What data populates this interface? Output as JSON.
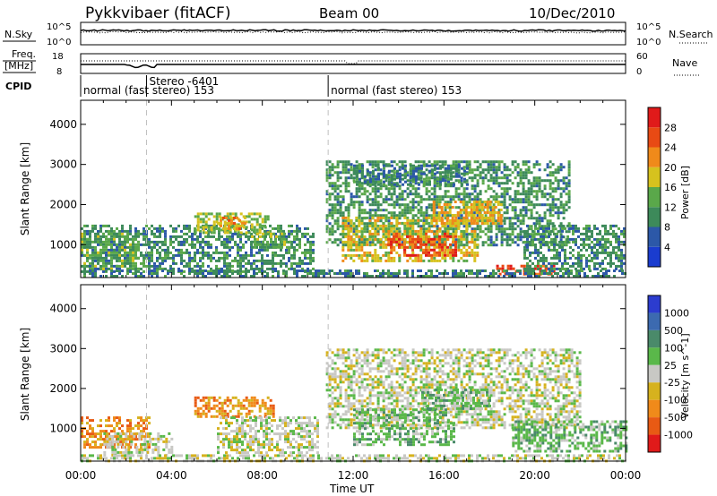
{
  "header": {
    "title": "Pykkvibaer (fitACF)",
    "beam": "Beam 00",
    "date": "10/Dec/2010"
  },
  "colors": {
    "power_scale": [
      "#1a3ccf",
      "#2c58a8",
      "#3d8a5a",
      "#5aa84a",
      "#d6c21e",
      "#f08a1a",
      "#e84a14",
      "#e01a1a"
    ],
    "velocity_scale": [
      "#2c3ccf",
      "#3c6ab0",
      "#4a8a6a",
      "#5ab84a",
      "#c8c8c4",
      "#d6b21e",
      "#f08a1a",
      "#e85a14",
      "#e01a1a"
    ],
    "dashed_line": "#bfbfbf"
  },
  "panels": {
    "nsky": {
      "left_label": "N.Sky",
      "right_label": "N.Search",
      "left_ticks": [
        "10^5",
        "10^0"
      ],
      "right_ticks": [
        "10^5",
        "10^0"
      ]
    },
    "freq": {
      "left_label_1": "Freq.",
      "left_label_2": "[MHz]",
      "right_label": "Nave",
      "left_ticks": [
        "18",
        "8"
      ],
      "right_ticks": [
        "60",
        "0"
      ]
    },
    "cpid": {
      "label": "CPID",
      "segments": [
        {
          "text": "normal (fast stereo) 153",
          "start_hour": 0
        },
        {
          "text": "Stereo -6401",
          "start_hour": 2.9
        },
        {
          "text": "normal (fast stereo) 153",
          "start_hour": 10.9
        }
      ]
    }
  },
  "chart_data": [
    {
      "type": "heatmap",
      "name": "Power",
      "ylabel": "Slant Range [km]",
      "ylim": [
        180,
        4600
      ],
      "y_ticks": [
        1000,
        2000,
        3000,
        4000
      ],
      "xlim": [
        0,
        24
      ],
      "colorbar_label": "Power [dB]",
      "colorbar_ticks": [
        "28",
        "24",
        "20",
        "16",
        "12",
        "8",
        "4"
      ],
      "colorbar_range": [
        0,
        32
      ],
      "dashed_hours": [
        2.9,
        10.9
      ],
      "echo_regions": [
        {
          "t0": 0.0,
          "t1": 10.3,
          "r0": 300,
          "r1": 1500,
          "level": 10
        },
        {
          "t0": 0.0,
          "t1": 2.5,
          "r0": 400,
          "r1": 1300,
          "level": 13
        },
        {
          "t0": 5.0,
          "t1": 8.2,
          "r0": 1300,
          "r1": 1800,
          "level": 16
        },
        {
          "t0": 6.0,
          "t1": 7.2,
          "r0": 1400,
          "r1": 1700,
          "level": 21
        },
        {
          "t0": 7.5,
          "t1": 9.2,
          "r0": 900,
          "r1": 1300,
          "level": 14
        },
        {
          "t0": 10.8,
          "t1": 21.5,
          "r0": 1000,
          "r1": 3100,
          "level": 11
        },
        {
          "t0": 11.5,
          "t1": 17.5,
          "r0": 600,
          "r1": 1700,
          "level": 18
        },
        {
          "t0": 13.5,
          "t1": 16.5,
          "r0": 700,
          "r1": 1300,
          "level": 26
        },
        {
          "t0": 15.5,
          "t1": 18.5,
          "r0": 1500,
          "r1": 2100,
          "level": 20
        },
        {
          "t0": 18.3,
          "t1": 20.8,
          "r0": 250,
          "r1": 500,
          "level": 27
        },
        {
          "t0": 0.0,
          "t1": 24.0,
          "r0": 180,
          "r1": 380,
          "level": 9
        },
        {
          "t0": 19.5,
          "t1": 24.0,
          "r0": 400,
          "r1": 1500,
          "level": 10
        },
        {
          "t0": 12.0,
          "t1": 17.0,
          "r0": 2500,
          "r1": 3000,
          "level": 9
        }
      ]
    },
    {
      "type": "heatmap",
      "name": "Velocity",
      "ylabel": "Slant Range [km]",
      "xlabel": "Time UT",
      "ylim": [
        180,
        4600
      ],
      "y_ticks": [
        1000,
        2000,
        3000,
        4000
      ],
      "xlim": [
        0,
        24
      ],
      "x_tick_labels": [
        "00:00",
        "04:00",
        "08:00",
        "12:00",
        "16:00",
        "20:00",
        "00:00"
      ],
      "x_tick_hours": [
        0,
        4,
        8,
        12,
        16,
        20,
        24
      ],
      "colorbar_label": "Velocity [m s^-1]",
      "colorbar_ticks": [
        "1000",
        "500",
        "100",
        "25",
        "-25",
        "-100",
        "-500",
        "-1000"
      ],
      "dashed_hours": [
        2.9,
        10.9
      ],
      "echo_regions": [
        {
          "t0": 0.0,
          "t1": 3.0,
          "r0": 500,
          "r1": 1300,
          "class": 6
        },
        {
          "t0": 1.0,
          "t1": 4.0,
          "r0": 300,
          "r1": 900,
          "class": 4
        },
        {
          "t0": 5.0,
          "t1": 8.5,
          "r0": 1300,
          "r1": 1800,
          "class": 6
        },
        {
          "t0": 6.0,
          "t1": 10.5,
          "r0": 400,
          "r1": 1300,
          "class": 4
        },
        {
          "t0": 10.8,
          "t1": 22.0,
          "r0": 1000,
          "r1": 3000,
          "class": 4
        },
        {
          "t0": 12.0,
          "t1": 16.5,
          "r0": 600,
          "r1": 1500,
          "class": 3
        },
        {
          "t0": 15.0,
          "t1": 18.0,
          "r0": 1500,
          "r1": 2000,
          "class": 3
        },
        {
          "t0": 19.0,
          "t1": 24.0,
          "r0": 400,
          "r1": 1200,
          "class": 3
        },
        {
          "t0": 0.0,
          "t1": 24.0,
          "r0": 180,
          "r1": 350,
          "class": 4
        }
      ]
    }
  ]
}
